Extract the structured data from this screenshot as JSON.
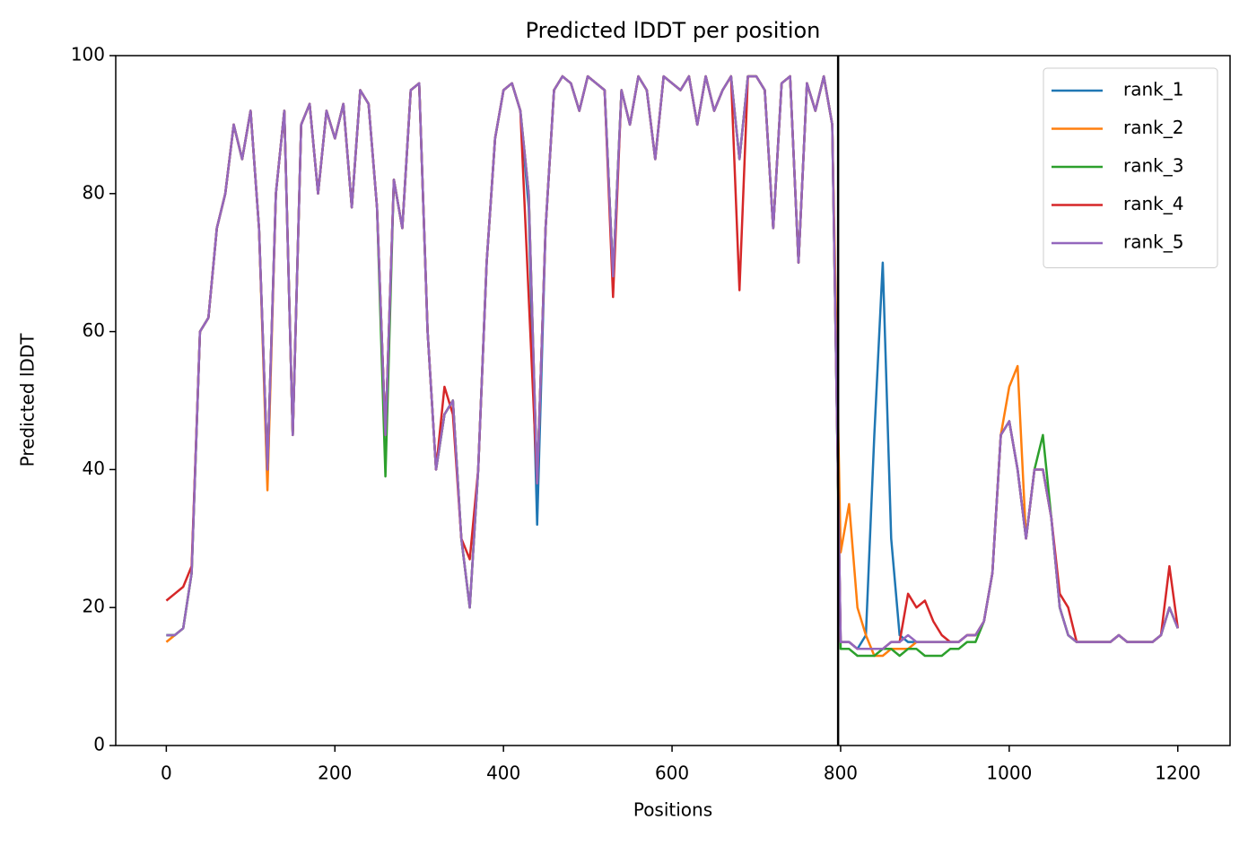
{
  "chart_data": {
    "type": "line",
    "title": "Predicted lDDT per position",
    "x_label": "Positions",
    "y_label": "Predicted lDDT",
    "x": [
      0,
      10,
      20,
      30,
      40,
      50,
      60,
      70,
      80,
      90,
      100,
      110,
      120,
      130,
      140,
      150,
      160,
      170,
      180,
      190,
      200,
      210,
      220,
      230,
      240,
      250,
      260,
      270,
      280,
      290,
      300,
      310,
      320,
      330,
      340,
      350,
      360,
      370,
      380,
      390,
      400,
      410,
      420,
      430,
      440,
      450,
      460,
      470,
      480,
      490,
      500,
      510,
      520,
      530,
      540,
      550,
      560,
      570,
      580,
      590,
      600,
      610,
      620,
      630,
      640,
      650,
      660,
      670,
      680,
      690,
      700,
      710,
      720,
      730,
      740,
      750,
      760,
      770,
      780,
      790,
      800,
      810,
      820,
      830,
      840,
      850,
      860,
      870,
      880,
      890,
      900,
      910,
      920,
      930,
      940,
      950,
      960,
      970,
      980,
      990,
      1000,
      1010,
      1020,
      1030,
      1040,
      1050,
      1060,
      1070,
      1080,
      1090,
      1100,
      1110,
      1120,
      1130,
      1140,
      1150,
      1160,
      1170,
      1180,
      1190,
      1200
    ],
    "series": [
      {
        "name": "rank_1",
        "color": "#1f77b4",
        "values": [
          16,
          16,
          17,
          25,
          60,
          62,
          75,
          80,
          90,
          85,
          92,
          75,
          40,
          80,
          92,
          45,
          90,
          93,
          80,
          92,
          88,
          93,
          78,
          95,
          93,
          78,
          45,
          82,
          75,
          95,
          96,
          60,
          40,
          48,
          50,
          30,
          20,
          40,
          70,
          88,
          95,
          96,
          92,
          78,
          32,
          75,
          95,
          97,
          96,
          92,
          97,
          96,
          95,
          68,
          95,
          90,
          97,
          95,
          85,
          97,
          96,
          95,
          97,
          90,
          97,
          92,
          95,
          97,
          85,
          97,
          97,
          95,
          75,
          96,
          97,
          70,
          96,
          92,
          97,
          90,
          15,
          15,
          14,
          16,
          45,
          70,
          30,
          16,
          15,
          15,
          15,
          15,
          15,
          15,
          15,
          16,
          16,
          18,
          25,
          45,
          47,
          40,
          30,
          40,
          40,
          33,
          20,
          16,
          15,
          15,
          15,
          15,
          15,
          16,
          15,
          15,
          15,
          15,
          16,
          20,
          17
        ]
      },
      {
        "name": "rank_2",
        "color": "#ff7f0e",
        "values": [
          15,
          16,
          17,
          25,
          60,
          62,
          75,
          80,
          90,
          85,
          92,
          75,
          37,
          80,
          92,
          45,
          90,
          93,
          80,
          92,
          88,
          93,
          78,
          95,
          93,
          78,
          45,
          82,
          75,
          95,
          96,
          60,
          40,
          48,
          50,
          30,
          20,
          40,
          70,
          88,
          95,
          96,
          92,
          80,
          38,
          75,
          95,
          97,
          96,
          92,
          97,
          96,
          95,
          68,
          95,
          90,
          97,
          95,
          85,
          97,
          96,
          95,
          97,
          90,
          97,
          92,
          95,
          97,
          85,
          97,
          97,
          95,
          75,
          96,
          97,
          70,
          96,
          92,
          97,
          90,
          28,
          35,
          20,
          16,
          13,
          13,
          14,
          14,
          14,
          15,
          15,
          15,
          15,
          15,
          15,
          16,
          16,
          18,
          25,
          45,
          52,
          55,
          30,
          40,
          40,
          33,
          20,
          16,
          15,
          15,
          15,
          15,
          15,
          16,
          15,
          15,
          15,
          15,
          16,
          20,
          17
        ]
      },
      {
        "name": "rank_3",
        "color": "#2ca02c",
        "values": [
          16,
          16,
          17,
          25,
          60,
          62,
          75,
          80,
          90,
          85,
          92,
          75,
          40,
          80,
          92,
          45,
          90,
          93,
          80,
          92,
          88,
          93,
          78,
          95,
          93,
          78,
          39,
          82,
          75,
          95,
          96,
          60,
          40,
          48,
          50,
          30,
          20,
          40,
          70,
          88,
          95,
          96,
          92,
          80,
          38,
          75,
          95,
          97,
          96,
          92,
          97,
          96,
          95,
          68,
          95,
          90,
          97,
          95,
          85,
          97,
          96,
          95,
          97,
          90,
          97,
          92,
          95,
          97,
          85,
          97,
          97,
          95,
          75,
          96,
          97,
          70,
          96,
          92,
          97,
          90,
          14,
          14,
          13,
          13,
          13,
          14,
          14,
          13,
          14,
          14,
          13,
          13,
          13,
          14,
          14,
          15,
          15,
          18,
          25,
          45,
          47,
          40,
          30,
          40,
          45,
          33,
          20,
          16,
          15,
          15,
          15,
          15,
          15,
          16,
          15,
          15,
          15,
          15,
          16,
          20,
          17
        ]
      },
      {
        "name": "rank_4",
        "color": "#d62728",
        "values": [
          21,
          22,
          23,
          26,
          60,
          62,
          75,
          80,
          90,
          85,
          92,
          75,
          40,
          80,
          92,
          45,
          90,
          93,
          80,
          92,
          88,
          93,
          78,
          95,
          93,
          78,
          45,
          82,
          75,
          95,
          96,
          60,
          40,
          52,
          48,
          30,
          27,
          40,
          70,
          88,
          95,
          96,
          92,
          65,
          38,
          75,
          95,
          97,
          96,
          92,
          97,
          96,
          95,
          65,
          95,
          90,
          97,
          95,
          85,
          97,
          96,
          95,
          97,
          90,
          97,
          92,
          95,
          97,
          66,
          97,
          97,
          95,
          75,
          96,
          97,
          70,
          96,
          92,
          97,
          90,
          15,
          15,
          14,
          14,
          14,
          14,
          15,
          15,
          22,
          20,
          21,
          18,
          16,
          15,
          15,
          16,
          16,
          18,
          25,
          45,
          47,
          40,
          30,
          40,
          40,
          33,
          22,
          20,
          15,
          15,
          15,
          15,
          15,
          16,
          15,
          15,
          15,
          15,
          16,
          26,
          17
        ]
      },
      {
        "name": "rank_5",
        "color": "#9467bd",
        "values": [
          16,
          16,
          17,
          25,
          60,
          62,
          75,
          80,
          90,
          85,
          92,
          75,
          40,
          80,
          92,
          45,
          90,
          93,
          80,
          92,
          88,
          93,
          78,
          95,
          93,
          78,
          45,
          82,
          75,
          95,
          96,
          60,
          40,
          48,
          50,
          30,
          20,
          40,
          70,
          88,
          95,
          96,
          92,
          80,
          38,
          75,
          95,
          97,
          96,
          92,
          97,
          96,
          95,
          68,
          95,
          90,
          97,
          95,
          85,
          97,
          96,
          95,
          97,
          90,
          97,
          92,
          95,
          97,
          85,
          97,
          97,
          95,
          75,
          96,
          97,
          70,
          96,
          92,
          97,
          90,
          15,
          15,
          14,
          14,
          14,
          14,
          15,
          15,
          16,
          15,
          15,
          15,
          15,
          15,
          15,
          16,
          16,
          18,
          25,
          45,
          47,
          40,
          30,
          40,
          40,
          33,
          20,
          16,
          15,
          15,
          15,
          15,
          15,
          16,
          15,
          15,
          15,
          15,
          16,
          20,
          17
        ]
      }
    ],
    "vlines": [
      797
    ],
    "xlim": [
      -60,
      1262
    ],
    "ylim": [
      0,
      100
    ],
    "xticks": [
      0,
      200,
      400,
      600,
      800,
      1000,
      1200
    ],
    "yticks": [
      0,
      20,
      40,
      60,
      80,
      100
    ],
    "legend": "upper right"
  }
}
